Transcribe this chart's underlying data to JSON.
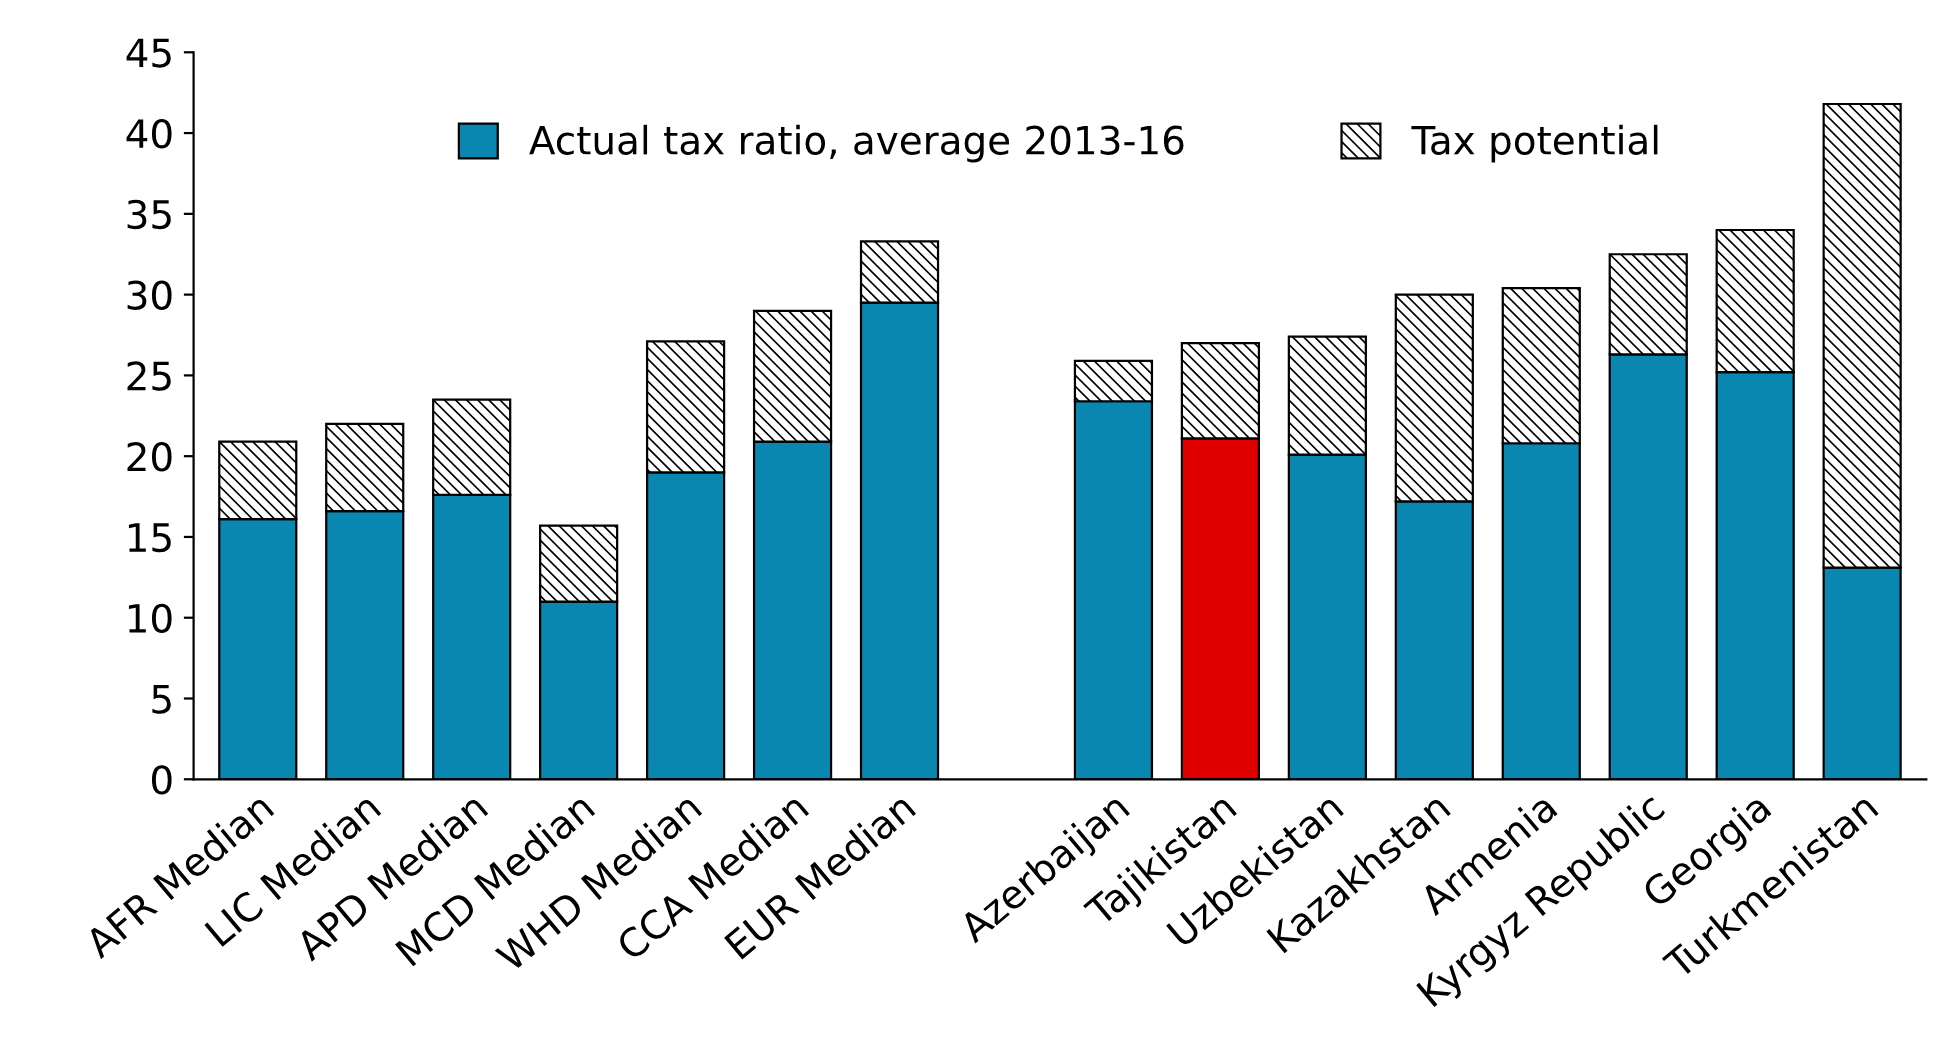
{
  "chart_data": {
    "type": "bar",
    "stacked": true,
    "categories": [
      "AFR Median",
      "LIC Median",
      "APD Median",
      "MCD Median",
      "WHD Median",
      "CCA Median",
      "EUR Median",
      null,
      "Azerbaijan",
      "Tajikistan",
      "Uzbekistan",
      "Kazakhstan",
      "Armenia",
      "Kyrgyz Republic",
      "Georgia",
      "Turkmenistan"
    ],
    "series": [
      {
        "name": "Actual tax ratio, average 2013-16",
        "color": "#0a87b0",
        "colors": [
          "#0a87b0",
          "#0a87b0",
          "#0a87b0",
          "#0a87b0",
          "#0a87b0",
          "#0a87b0",
          "#0a87b0",
          "#0a87b0",
          "#0a87b0",
          "#e00000",
          "#0a87b0",
          "#0a87b0",
          "#0a87b0",
          "#0a87b0",
          "#0a87b0",
          "#0a87b0"
        ],
        "values": [
          16.1,
          16.6,
          17.6,
          11.0,
          19.0,
          20.9,
          29.5,
          null,
          23.4,
          21.1,
          20.1,
          17.2,
          20.8,
          26.3,
          25.2,
          13.1
        ]
      },
      {
        "name": "Tax potential",
        "color": "#000000",
        "values": [
          4.8,
          5.4,
          5.9,
          4.7,
          8.1,
          8.1,
          3.8,
          null,
          2.5,
          5.9,
          7.3,
          12.8,
          9.6,
          6.2,
          8.8,
          28.7
        ]
      }
    ],
    "ylim": [
      0,
      45
    ],
    "yticks": [
      0,
      5,
      10,
      15,
      20,
      25,
      30,
      35,
      40,
      45
    ],
    "legend": "top",
    "grid": false
  }
}
